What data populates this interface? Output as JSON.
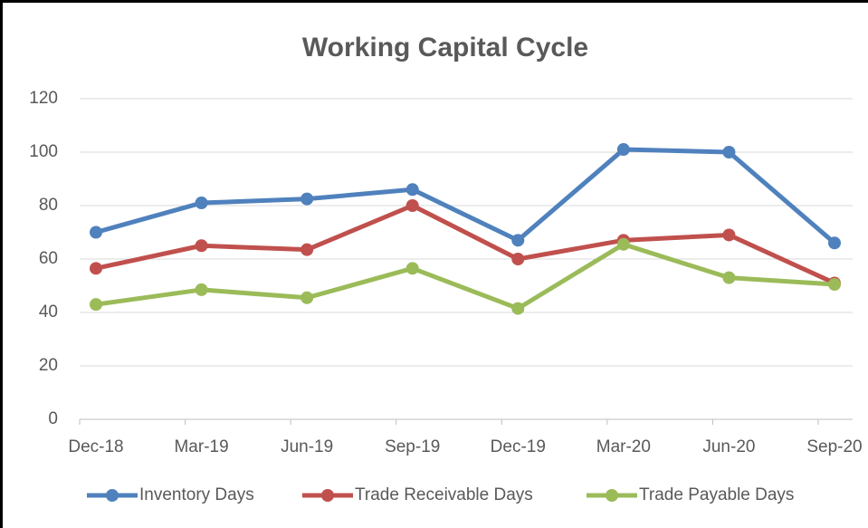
{
  "chart_data": {
    "type": "line",
    "title": "Working Capital Cycle",
    "categories": [
      "Dec-18",
      "Mar-19",
      "Jun-19",
      "Sep-19",
      "Dec-19",
      "Mar-20",
      "Jun-20",
      "Sep-20"
    ],
    "series": [
      {
        "name": "Inventory Days",
        "color": "#4f81bd",
        "values": [
          70,
          81,
          82.5,
          86,
          67,
          101,
          100,
          66
        ]
      },
      {
        "name": "Trade Receivable Days",
        "color": "#c0504d",
        "values": [
          56.5,
          65,
          63.5,
          80,
          60,
          67,
          69,
          51
        ]
      },
      {
        "name": "Trade Payable Days",
        "color": "#9bbb59",
        "values": [
          43,
          48.5,
          45.5,
          56.5,
          41.5,
          65.5,
          53,
          50.5
        ]
      }
    ],
    "ylim": [
      0,
      120
    ],
    "yticks": [
      0,
      20,
      40,
      60,
      80,
      100,
      120
    ],
    "grid": true,
    "legend": "bottom"
  }
}
